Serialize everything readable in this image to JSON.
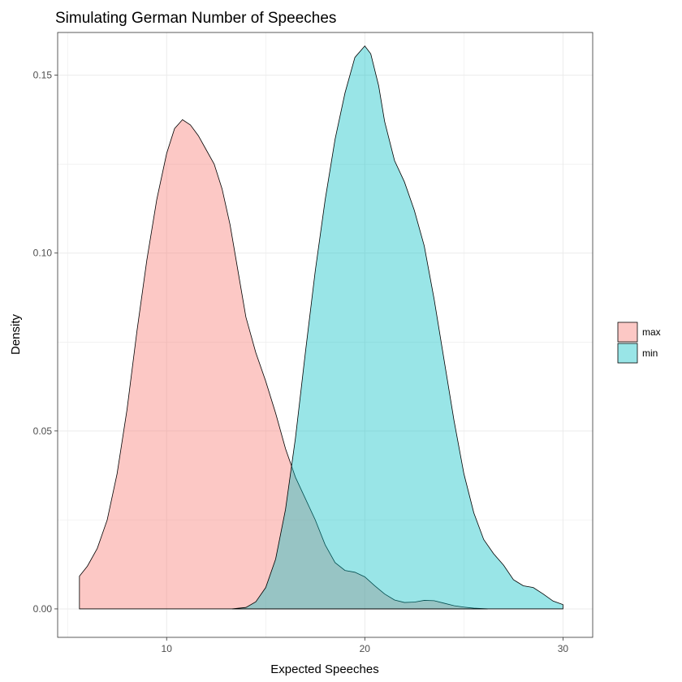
{
  "chart_data": {
    "type": "area",
    "title": "Simulating German Number of Speeches",
    "xlabel": "Expected Speeches",
    "ylabel": "Density",
    "xlim": [
      4.5,
      31.5
    ],
    "ylim": [
      -0.008,
      0.162
    ],
    "x_ticks": [
      10,
      20,
      30
    ],
    "y_ticks": [
      0.0,
      0.05,
      0.1,
      0.15
    ],
    "y_tick_labels": [
      "0.00",
      "0.05",
      "0.10",
      "0.15"
    ],
    "grid": true,
    "legend_position": "right",
    "series": [
      {
        "name": "max",
        "color": "#F8766D",
        "points": [
          [
            5.6,
            0.0
          ],
          [
            5.6,
            0.0092
          ],
          [
            6.0,
            0.012
          ],
          [
            6.5,
            0.017
          ],
          [
            7.0,
            0.025
          ],
          [
            7.5,
            0.038
          ],
          [
            8.0,
            0.056
          ],
          [
            8.5,
            0.078
          ],
          [
            9.0,
            0.098
          ],
          [
            9.5,
            0.115
          ],
          [
            10.0,
            0.128
          ],
          [
            10.4,
            0.135
          ],
          [
            10.8,
            0.1375
          ],
          [
            11.2,
            0.136
          ],
          [
            11.6,
            0.133
          ],
          [
            12.0,
            0.129
          ],
          [
            12.4,
            0.125
          ],
          [
            12.8,
            0.118
          ],
          [
            13.2,
            0.108
          ],
          [
            13.6,
            0.095
          ],
          [
            14.0,
            0.082
          ],
          [
            14.5,
            0.072
          ],
          [
            15.0,
            0.064
          ],
          [
            15.5,
            0.055
          ],
          [
            16.0,
            0.045
          ],
          [
            16.5,
            0.037
          ],
          [
            17.0,
            0.031
          ],
          [
            17.5,
            0.025
          ],
          [
            18.0,
            0.018
          ],
          [
            18.5,
            0.013
          ],
          [
            19.0,
            0.0108
          ],
          [
            19.5,
            0.0103
          ],
          [
            20.0,
            0.009
          ],
          [
            20.5,
            0.0065
          ],
          [
            21.0,
            0.0042
          ],
          [
            21.5,
            0.0025
          ],
          [
            22.0,
            0.0018
          ],
          [
            22.5,
            0.0019
          ],
          [
            23.0,
            0.0024
          ],
          [
            23.5,
            0.0023
          ],
          [
            24.0,
            0.0016
          ],
          [
            24.5,
            0.0009
          ],
          [
            25.0,
            0.0005
          ],
          [
            25.5,
            0.0002
          ],
          [
            26.2,
            0.0
          ]
        ]
      },
      {
        "name": "min",
        "color": "#00BFC4",
        "points": [
          [
            13.3,
            0.0
          ],
          [
            14.0,
            0.0004
          ],
          [
            14.5,
            0.002
          ],
          [
            15.0,
            0.006
          ],
          [
            15.5,
            0.014
          ],
          [
            16.0,
            0.028
          ],
          [
            16.5,
            0.048
          ],
          [
            17.0,
            0.072
          ],
          [
            17.5,
            0.095
          ],
          [
            18.0,
            0.115
          ],
          [
            18.5,
            0.132
          ],
          [
            19.0,
            0.145
          ],
          [
            19.5,
            0.155
          ],
          [
            20.0,
            0.1582
          ],
          [
            20.3,
            0.156
          ],
          [
            20.7,
            0.147
          ],
          [
            21.0,
            0.137
          ],
          [
            21.5,
            0.126
          ],
          [
            22.0,
            0.12
          ],
          [
            22.5,
            0.112
          ],
          [
            23.0,
            0.102
          ],
          [
            23.5,
            0.087
          ],
          [
            24.0,
            0.07
          ],
          [
            24.5,
            0.053
          ],
          [
            25.0,
            0.038
          ],
          [
            25.5,
            0.027
          ],
          [
            26.0,
            0.0195
          ],
          [
            26.5,
            0.0155
          ],
          [
            27.0,
            0.0123
          ],
          [
            27.5,
            0.0082
          ],
          [
            28.0,
            0.0065
          ],
          [
            28.5,
            0.006
          ],
          [
            29.0,
            0.0042
          ],
          [
            29.5,
            0.0022
          ],
          [
            30.0,
            0.0012
          ],
          [
            30.0,
            0.0
          ]
        ]
      }
    ]
  }
}
